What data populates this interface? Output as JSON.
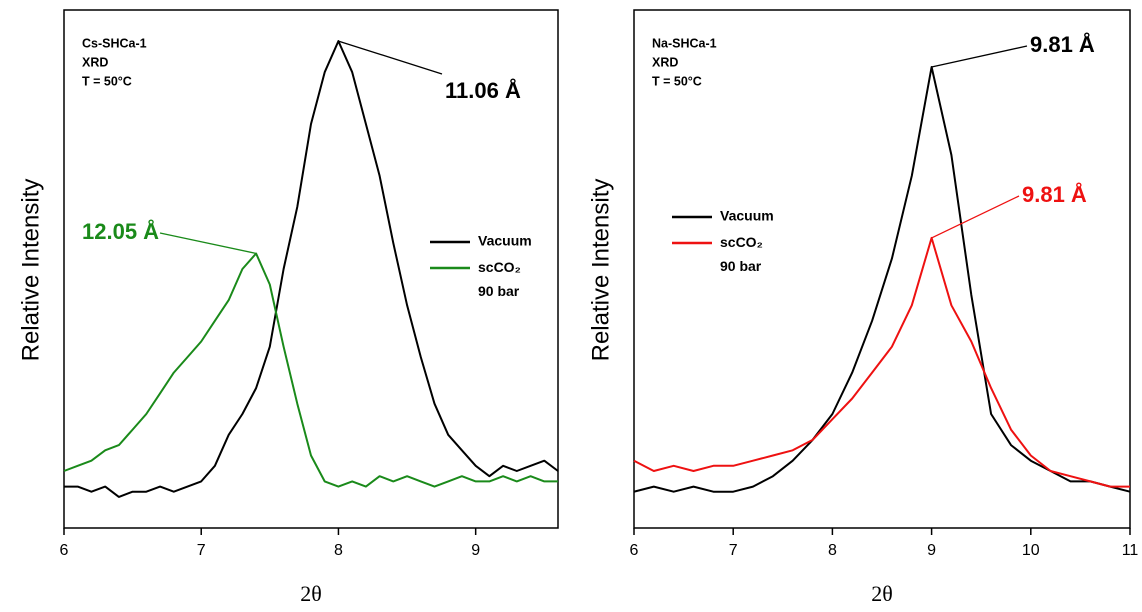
{
  "chart_data": [
    {
      "type": "line",
      "xlabel": "2θ",
      "ylabel": "Relative Intensity",
      "info": [
        "Cs-SHCa-1",
        "XRD",
        "T = 50°C"
      ],
      "x": [
        6.0,
        6.1,
        6.2,
        6.3,
        6.4,
        6.5,
        6.6,
        6.7,
        6.8,
        6.9,
        7.0,
        7.1,
        7.2,
        7.3,
        7.4,
        7.5,
        7.6,
        7.7,
        7.8,
        7.9,
        8.0,
        8.1,
        8.2,
        8.3,
        8.4,
        8.5,
        8.6,
        8.7,
        8.8,
        8.9,
        9.0,
        9.1,
        9.2,
        9.3,
        9.4,
        9.5,
        9.6
      ],
      "series": [
        {
          "name": "Vacuum",
          "color": "#000000",
          "values": [
            8,
            8,
            7,
            8,
            6,
            7,
            7,
            8,
            7,
            8,
            9,
            12,
            18,
            22,
            27,
            35,
            50,
            62,
            78,
            88,
            94,
            88,
            78,
            68,
            55,
            43,
            33,
            24,
            18,
            15,
            12,
            10,
            12,
            11,
            12,
            13,
            11
          ]
        },
        {
          "name": "scCO₂ 90 bar",
          "color": "#1a8a1a",
          "values": [
            11,
            12,
            13,
            15,
            16,
            19,
            22,
            26,
            30,
            33,
            36,
            40,
            44,
            50,
            53,
            47,
            35,
            24,
            14,
            9,
            8,
            9,
            8,
            10,
            9,
            10,
            9,
            8,
            9,
            10,
            9,
            9,
            10,
            9,
            10,
            9,
            9
          ]
        }
      ],
      "annotations": [
        {
          "text": "11.06 Å",
          "x": 8.0,
          "y": 94,
          "color": "#000000"
        },
        {
          "text": "12.05 Å",
          "x": 7.4,
          "y": 53,
          "color": "#1a8a1a"
        }
      ],
      "xlim": [
        6,
        9.6
      ],
      "xticks": [
        6,
        7,
        8,
        9
      ],
      "ylim": [
        0,
        100
      ],
      "legend": "center right"
    },
    {
      "type": "line",
      "xlabel": "2θ",
      "ylabel": "Relative Intensity",
      "info": [
        "Na-SHCa-1",
        "XRD",
        "T = 50°C"
      ],
      "x": [
        6.0,
        6.2,
        6.4,
        6.6,
        6.8,
        7.0,
        7.2,
        7.4,
        7.6,
        7.8,
        8.0,
        8.2,
        8.4,
        8.6,
        8.8,
        9.0,
        9.2,
        9.4,
        9.6,
        9.8,
        10.0,
        10.2,
        10.4,
        10.6,
        10.8,
        11.0
      ],
      "series": [
        {
          "name": "Vacuum",
          "color": "#000000",
          "values": [
            7,
            8,
            7,
            8,
            7,
            7,
            8,
            10,
            13,
            17,
            22,
            30,
            40,
            52,
            68,
            89,
            72,
            45,
            22,
            16,
            13,
            11,
            9,
            9,
            8,
            7
          ]
        },
        {
          "name": "scCO₂ 90 bar",
          "color": "#ee1111",
          "values": [
            13,
            11,
            12,
            11,
            12,
            12,
            13,
            14,
            15,
            17,
            21,
            25,
            30,
            35,
            43,
            56,
            43,
            36,
            27,
            19,
            14,
            11,
            10,
            9,
            8,
            8
          ]
        }
      ],
      "annotations": [
        {
          "text": "9.81 Å",
          "x": 9.0,
          "y": 89,
          "color": "#000000"
        },
        {
          "text": "9.81 Å",
          "x": 9.0,
          "y": 56,
          "color": "#ee1111"
        }
      ],
      "xlim": [
        6,
        11
      ],
      "xticks": [
        6,
        7,
        8,
        9,
        10,
        11
      ],
      "ylim": [
        0,
        100
      ],
      "legend": "center left"
    }
  ]
}
